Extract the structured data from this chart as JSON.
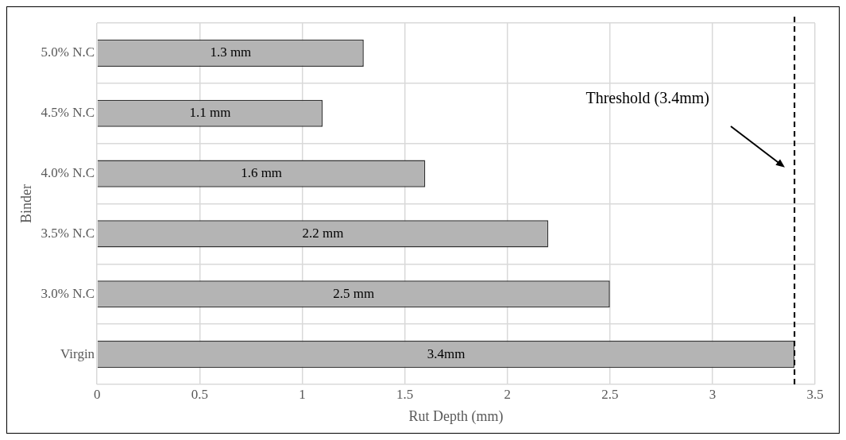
{
  "chart_data": {
    "type": "bar",
    "orientation": "horizontal",
    "xlabel": "Rut Depth (mm)",
    "ylabel": "Binder",
    "categories": [
      "5.0% N.C",
      "4.5% N.C",
      "4.0% N.C",
      "3.5% N.C",
      "3.0% N.C",
      "Virgin"
    ],
    "values": [
      1.3,
      1.1,
      1.6,
      2.2,
      2.5,
      3.4
    ],
    "value_labels": [
      "1.3 mm",
      "1.1 mm",
      "1.6 mm",
      "2.2 mm",
      "2.5 mm",
      "3.4mm"
    ],
    "color": "#b4b4b4",
    "xlim": [
      0,
      3.5
    ],
    "xticks": [
      0,
      0.5,
      1,
      1.5,
      2,
      2.5,
      3,
      3.5
    ],
    "grid": true,
    "legend": false,
    "ref_lines": [
      {
        "axis": "x",
        "value": 3.4,
        "label": "Threshold (3.4mm)",
        "color": "#000000",
        "line_style": "dashed"
      }
    ]
  }
}
